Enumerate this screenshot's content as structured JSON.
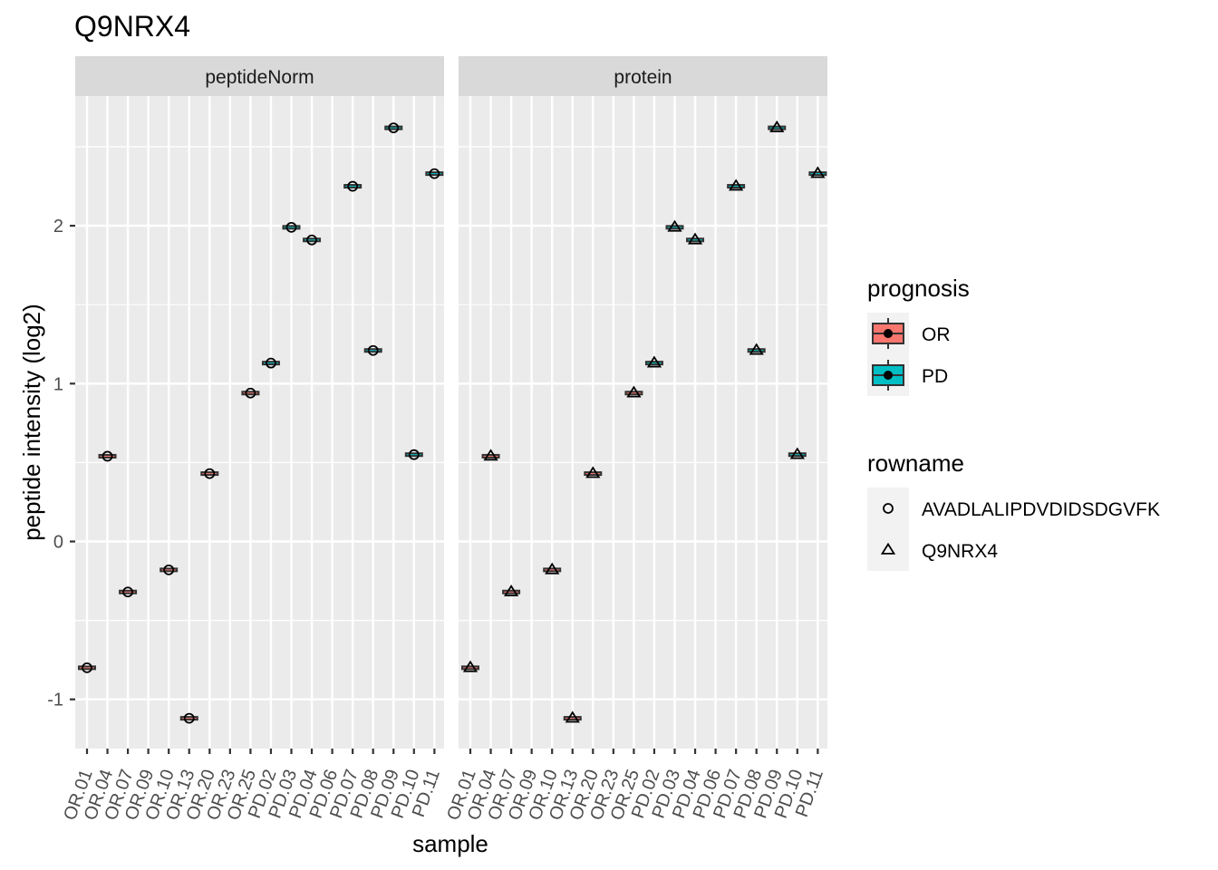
{
  "chart_data": {
    "type": "box",
    "title": "Q9NRX4",
    "xlabel": "sample",
    "ylabel": "peptide intensity (log2)",
    "yticks": [
      "-1",
      "0",
      "1",
      "2"
    ],
    "ylim": [
      -1.3,
      2.85
    ],
    "grid": true,
    "legend_position": "right",
    "facets": [
      "peptideNorm",
      "protein"
    ],
    "categories": [
      "OR.01",
      "OR.04",
      "OR.07",
      "OR.09",
      "OR.10",
      "OR.13",
      "OR.20",
      "OR.23",
      "OR.25",
      "PD.02",
      "PD.03",
      "PD.04",
      "PD.06",
      "PD.07",
      "PD.08",
      "PD.09",
      "PD.10",
      "PD.11"
    ],
    "values": [
      -0.8,
      0.54,
      -0.32,
      null,
      -0.18,
      -1.12,
      0.43,
      null,
      0.94,
      1.13,
      1.99,
      1.91,
      null,
      2.25,
      1.21,
      2.62,
      0.55,
      2.33
    ],
    "prognosis": [
      "OR",
      "OR",
      "OR",
      "OR",
      "OR",
      "OR",
      "OR",
      "OR",
      "OR",
      "PD",
      "PD",
      "PD",
      "PD",
      "PD",
      "PD",
      "PD",
      "PD",
      "PD"
    ],
    "series": [
      {
        "name": "AVADLALIPDVDIDSDGVFK",
        "facet": "peptideNorm",
        "shape": "circle"
      },
      {
        "name": "Q9NRX4",
        "facet": "protein",
        "shape": "triangle"
      }
    ],
    "legend": {
      "fill": {
        "title": "prognosis",
        "items": [
          {
            "label": "OR",
            "color": "#F8766D"
          },
          {
            "label": "PD",
            "color": "#00BFC4"
          }
        ]
      },
      "shape": {
        "title": "rowname",
        "items": [
          {
            "label": "AVADLALIPDVDIDSDGVFK",
            "shape": "circle"
          },
          {
            "label": "Q9NRX4",
            "shape": "triangle"
          }
        ]
      }
    }
  }
}
